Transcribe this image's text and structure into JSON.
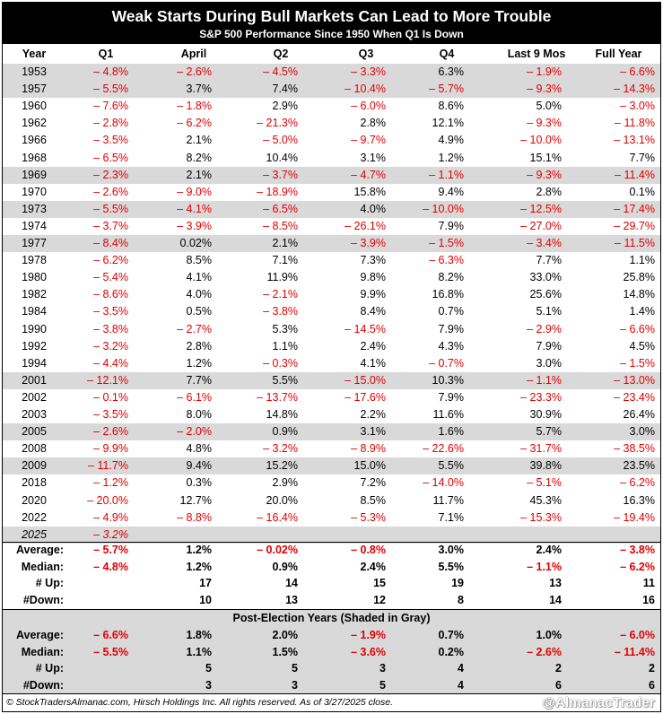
{
  "title": "Weak Starts During Bull Markets Can Lead to More Trouble",
  "subtitle": "S&P 500 Performance Since 1950 When Q1 Is Down",
  "columns": [
    "Year",
    "Q1",
    "April",
    "Q2",
    "Q3",
    "Q4",
    "Last 9 Mos",
    "Full Year"
  ],
  "rows": [
    {
      "year": "1953",
      "shade": true,
      "v": [
        "– 4.8%",
        "– 2.6%",
        "– 4.5%",
        "– 3.3%",
        "6.3%",
        "– 1.9%",
        "– 6.6%"
      ]
    },
    {
      "year": "1957",
      "shade": true,
      "v": [
        "– 5.5%",
        "3.7%",
        "7.4%",
        "– 10.4%",
        "– 5.7%",
        "– 9.3%",
        "– 14.3%"
      ]
    },
    {
      "year": "1960",
      "shade": false,
      "v": [
        "– 7.6%",
        "– 1.8%",
        "2.9%",
        "– 6.0%",
        "8.6%",
        "5.0%",
        "– 3.0%"
      ]
    },
    {
      "year": "1962",
      "shade": false,
      "v": [
        "– 2.8%",
        "– 6.2%",
        "– 21.3%",
        "2.8%",
        "12.1%",
        "– 9.3%",
        "– 11.8%"
      ]
    },
    {
      "year": "1966",
      "shade": false,
      "v": [
        "– 3.5%",
        "2.1%",
        "– 5.0%",
        "– 9.7%",
        "4.9%",
        "– 10.0%",
        "– 13.1%"
      ]
    },
    {
      "year": "1968",
      "shade": false,
      "v": [
        "– 6.5%",
        "8.2%",
        "10.4%",
        "3.1%",
        "1.2%",
        "15.1%",
        "7.7%"
      ]
    },
    {
      "year": "1969",
      "shade": true,
      "v": [
        "– 2.3%",
        "2.1%",
        "– 3.7%",
        "– 4.7%",
        "– 1.1%",
        "– 9.3%",
        "– 11.4%"
      ]
    },
    {
      "year": "1970",
      "shade": false,
      "v": [
        "– 2.6%",
        "– 9.0%",
        "– 18.9%",
        "15.8%",
        "9.4%",
        "2.8%",
        "0.1%"
      ]
    },
    {
      "year": "1973",
      "shade": true,
      "v": [
        "– 5.5%",
        "– 4.1%",
        "– 6.5%",
        "4.0%",
        "– 10.0%",
        "– 12.5%",
        "– 17.4%"
      ]
    },
    {
      "year": "1974",
      "shade": false,
      "v": [
        "– 3.7%",
        "– 3.9%",
        "– 8.5%",
        "– 26.1%",
        "7.9%",
        "– 27.0%",
        "– 29.7%"
      ]
    },
    {
      "year": "1977",
      "shade": true,
      "v": [
        "– 8.4%",
        "0.02%",
        "2.1%",
        "– 3.9%",
        "– 1.5%",
        "– 3.4%",
        "– 11.5%"
      ]
    },
    {
      "year": "1978",
      "shade": false,
      "v": [
        "– 6.2%",
        "8.5%",
        "7.1%",
        "7.3%",
        "– 6.3%",
        "7.7%",
        "1.1%"
      ]
    },
    {
      "year": "1980",
      "shade": false,
      "v": [
        "– 5.4%",
        "4.1%",
        "11.9%",
        "9.8%",
        "8.2%",
        "33.0%",
        "25.8%"
      ]
    },
    {
      "year": "1982",
      "shade": false,
      "v": [
        "– 8.6%",
        "4.0%",
        "– 2.1%",
        "9.9%",
        "16.8%",
        "25.6%",
        "14.8%"
      ]
    },
    {
      "year": "1984",
      "shade": false,
      "v": [
        "– 3.5%",
        "0.5%",
        "– 3.8%",
        "8.4%",
        "0.7%",
        "5.1%",
        "1.4%"
      ]
    },
    {
      "year": "1990",
      "shade": false,
      "v": [
        "– 3.8%",
        "– 2.7%",
        "5.3%",
        "– 14.5%",
        "7.9%",
        "– 2.9%",
        "– 6.6%"
      ]
    },
    {
      "year": "1992",
      "shade": false,
      "v": [
        "– 3.2%",
        "2.8%",
        "1.1%",
        "2.4%",
        "4.3%",
        "7.9%",
        "4.5%"
      ]
    },
    {
      "year": "1994",
      "shade": false,
      "v": [
        "– 4.4%",
        "1.2%",
        "– 0.3%",
        "4.1%",
        "– 0.7%",
        "3.0%",
        "– 1.5%"
      ]
    },
    {
      "year": "2001",
      "shade": true,
      "v": [
        "– 12.1%",
        "7.7%",
        "5.5%",
        "– 15.0%",
        "10.3%",
        "– 1.1%",
        "– 13.0%"
      ]
    },
    {
      "year": "2002",
      "shade": false,
      "v": [
        "– 0.1%",
        "– 6.1%",
        "– 13.7%",
        "– 17.6%",
        "7.9%",
        "– 23.3%",
        "– 23.4%"
      ]
    },
    {
      "year": "2003",
      "shade": false,
      "v": [
        "– 3.5%",
        "8.0%",
        "14.8%",
        "2.2%",
        "11.6%",
        "30.9%",
        "26.4%"
      ]
    },
    {
      "year": "2005",
      "shade": true,
      "v": [
        "– 2.6%",
        "– 2.0%",
        "0.9%",
        "3.1%",
        "1.6%",
        "5.7%",
        "3.0%"
      ]
    },
    {
      "year": "2008",
      "shade": false,
      "v": [
        "– 9.9%",
        "4.8%",
        "– 3.2%",
        "– 8.9%",
        "– 22.6%",
        "– 31.7%",
        "– 38.5%"
      ]
    },
    {
      "year": "2009",
      "shade": true,
      "v": [
        "– 11.7%",
        "9.4%",
        "15.2%",
        "15.0%",
        "5.5%",
        "39.8%",
        "23.5%"
      ]
    },
    {
      "year": "2018",
      "shade": false,
      "v": [
        "– 1.2%",
        "0.3%",
        "2.9%",
        "7.2%",
        "– 14.0%",
        "– 5.1%",
        "– 6.2%"
      ]
    },
    {
      "year": "2020",
      "shade": false,
      "v": [
        "– 20.0%",
        "12.7%",
        "20.0%",
        "8.5%",
        "11.7%",
        "45.3%",
        "16.3%"
      ]
    },
    {
      "year": "2022",
      "shade": false,
      "v": [
        "– 4.9%",
        "– 8.8%",
        "– 16.4%",
        "– 5.3%",
        "7.1%",
        "– 15.3%",
        "– 19.4%"
      ]
    },
    {
      "year": "2025",
      "shade": true,
      "italic": true,
      "v": [
        "– 3.2%",
        "",
        "",
        "",
        "",
        "",
        ""
      ]
    }
  ],
  "stats": [
    {
      "label": "Average:",
      "v": [
        "– 5.7%",
        "1.2%",
        "– 0.02%",
        "– 0.8%",
        "3.0%",
        "2.4%",
        "– 3.8%"
      ]
    },
    {
      "label": "Median:",
      "v": [
        "– 4.8%",
        "1.2%",
        "0.9%",
        "2.4%",
        "5.5%",
        "– 1.1%",
        "– 6.2%"
      ]
    },
    {
      "label": "# Up:",
      "v": [
        "",
        "17",
        "14",
        "15",
        "19",
        "13",
        "11"
      ]
    },
    {
      "label": "#Down:",
      "v": [
        "",
        "10",
        "13",
        "12",
        "8",
        "14",
        "16"
      ]
    }
  ],
  "post_election_title": "Post-Election Years (Shaded in Gray)",
  "post_election": [
    {
      "label": "Average:",
      "v": [
        "– 6.6%",
        "1.8%",
        "2.0%",
        "– 1.9%",
        "0.7%",
        "1.0%",
        "– 6.0%"
      ]
    },
    {
      "label": "Median:",
      "v": [
        "– 5.5%",
        "1.1%",
        "1.5%",
        "– 3.6%",
        "0.2%",
        "– 2.6%",
        "– 11.4%"
      ]
    },
    {
      "label": "# Up:",
      "v": [
        "",
        "5",
        "5",
        "3",
        "4",
        "2",
        "2"
      ]
    },
    {
      "label": "#Down:",
      "v": [
        "",
        "3",
        "3",
        "5",
        "4",
        "6",
        "6"
      ]
    }
  ],
  "footer": "© StockTradersAlmanac.com, Hirsch Holdings Inc. All rights reserved. As of 3/27/2025 close.",
  "handle": "@AlmanacTrader",
  "colors": {
    "negative": "#e00000",
    "shade": "#d9d9d9",
    "header_bg": "#000000"
  }
}
